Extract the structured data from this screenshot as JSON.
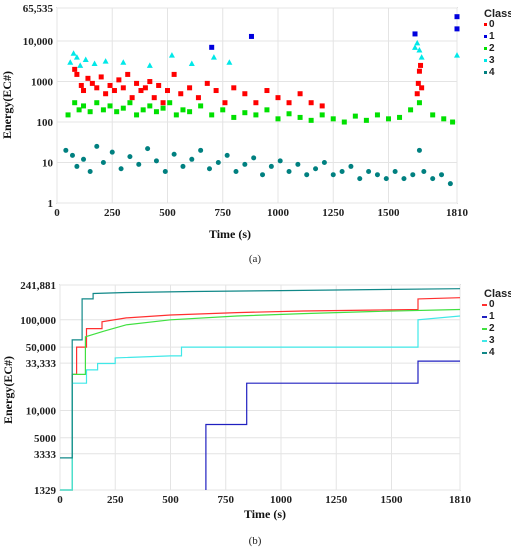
{
  "chart_data": [
    {
      "id": "a",
      "type": "scatter",
      "caption": "(a)",
      "xlabel": "Time  (s)",
      "ylabel": "Energy(EC#)",
      "xlim": [
        0,
        1810
      ],
      "ylim": [
        1,
        65535
      ],
      "yscale": "log",
      "xticks": [
        {
          "v": 0,
          "label": "0"
        },
        {
          "v": 250,
          "label": "250"
        },
        {
          "v": 500,
          "label": "500"
        },
        {
          "v": 750,
          "label": "750"
        },
        {
          "v": 1000,
          "label": "1000"
        },
        {
          "v": 1250,
          "label": "1250"
        },
        {
          "v": 1500,
          "label": "1500"
        },
        {
          "v": 1810,
          "label": "1810"
        }
      ],
      "yticks": [
        {
          "v": 1,
          "label": "1"
        },
        {
          "v": 10,
          "label": "10"
        },
        {
          "v": 100,
          "label": "100"
        },
        {
          "v": 1000,
          "label": "1000"
        },
        {
          "v": 10000,
          "label": "10,000"
        },
        {
          "v": 65535,
          "label": "65,535"
        }
      ],
      "grid": true,
      "legend": {
        "title": "Class",
        "placement": "right"
      },
      "series": [
        {
          "name": "0",
          "color": "#ff0000",
          "marker": "square",
          "points": [
            [
              80,
              2000
            ],
            [
              90,
              1500
            ],
            [
              110,
              800
            ],
            [
              120,
              600
            ],
            [
              140,
              1200
            ],
            [
              160,
              900
            ],
            [
              180,
              700
            ],
            [
              200,
              1300
            ],
            [
              220,
              500
            ],
            [
              240,
              800
            ],
            [
              260,
              600
            ],
            [
              280,
              1100
            ],
            [
              300,
              700
            ],
            [
              320,
              1500
            ],
            [
              340,
              400
            ],
            [
              360,
              900
            ],
            [
              380,
              600
            ],
            [
              400,
              700
            ],
            [
              420,
              1000
            ],
            [
              440,
              400
            ],
            [
              460,
              800
            ],
            [
              480,
              300
            ],
            [
              500,
              600
            ],
            [
              530,
              1500
            ],
            [
              560,
              500
            ],
            [
              600,
              700
            ],
            [
              640,
              400
            ],
            [
              680,
              900
            ],
            [
              720,
              600
            ],
            [
              760,
              300
            ],
            [
              800,
              700
            ],
            [
              850,
              500
            ],
            [
              900,
              300
            ],
            [
              950,
              600
            ],
            [
              1000,
              400
            ],
            [
              1050,
              300
            ],
            [
              1100,
              500
            ],
            [
              1150,
              300
            ],
            [
              1200,
              250
            ],
            [
              1630,
              500
            ],
            [
              1635,
              900
            ],
            [
              1640,
              1800
            ],
            [
              1645,
              2500
            ],
            [
              1650,
              700
            ]
          ]
        },
        {
          "name": "1",
          "color": "#0000dd",
          "marker": "square",
          "points": [
            [
              700,
              7000
            ],
            [
              880,
              13000
            ],
            [
              1620,
              15000
            ],
            [
              1810,
              40000
            ],
            [
              1810,
              20000
            ]
          ]
        },
        {
          "name": "2",
          "color": "#00e000",
          "marker": "square",
          "points": [
            [
              50,
              150
            ],
            [
              80,
              300
            ],
            [
              100,
              200
            ],
            [
              120,
              250
            ],
            [
              150,
              180
            ],
            [
              180,
              300
            ],
            [
              210,
              200
            ],
            [
              240,
              250
            ],
            [
              270,
              180
            ],
            [
              300,
              220
            ],
            [
              330,
              300
            ],
            [
              360,
              150
            ],
            [
              390,
              200
            ],
            [
              420,
              250
            ],
            [
              450,
              180
            ],
            [
              480,
              220
            ],
            [
              510,
              300
            ],
            [
              540,
              150
            ],
            [
              570,
              200
            ],
            [
              600,
              180
            ],
            [
              650,
              250
            ],
            [
              700,
              150
            ],
            [
              750,
              200
            ],
            [
              800,
              130
            ],
            [
              850,
              170
            ],
            [
              900,
              150
            ],
            [
              950,
              200
            ],
            [
              1000,
              120
            ],
            [
              1050,
              160
            ],
            [
              1100,
              130
            ],
            [
              1150,
              110
            ],
            [
              1200,
              150
            ],
            [
              1250,
              120
            ],
            [
              1300,
              100
            ],
            [
              1350,
              140
            ],
            [
              1400,
              110
            ],
            [
              1450,
              150
            ],
            [
              1500,
              120
            ],
            [
              1550,
              130
            ],
            [
              1600,
              200
            ],
            [
              1640,
              300
            ],
            [
              1700,
              150
            ],
            [
              1750,
              120
            ],
            [
              1790,
              100
            ]
          ]
        },
        {
          "name": "3",
          "color": "#00e8e8",
          "marker": "triangle",
          "points": [
            [
              60,
              3000
            ],
            [
              75,
              5000
            ],
            [
              90,
              4000
            ],
            [
              105,
              2500
            ],
            [
              130,
              3500
            ],
            [
              170,
              2800
            ],
            [
              220,
              3200
            ],
            [
              300,
              3000
            ],
            [
              420,
              2500
            ],
            [
              520,
              4500
            ],
            [
              610,
              2800
            ],
            [
              710,
              4000
            ],
            [
              780,
              3000
            ],
            [
              1620,
              7000
            ],
            [
              1630,
              9000
            ],
            [
              1640,
              6000
            ],
            [
              1650,
              4000
            ],
            [
              1810,
              4500
            ]
          ]
        },
        {
          "name": "4",
          "color": "#008080",
          "marker": "circle",
          "points": [
            [
              40,
              20
            ],
            [
              70,
              15
            ],
            [
              90,
              8
            ],
            [
              120,
              12
            ],
            [
              150,
              6
            ],
            [
              180,
              25
            ],
            [
              210,
              10
            ],
            [
              250,
              18
            ],
            [
              290,
              7
            ],
            [
              330,
              14
            ],
            [
              370,
              9
            ],
            [
              410,
              22
            ],
            [
              450,
              11
            ],
            [
              490,
              6
            ],
            [
              530,
              16
            ],
            [
              570,
              8
            ],
            [
              610,
              12
            ],
            [
              650,
              20
            ],
            [
              690,
              7
            ],
            [
              730,
              10
            ],
            [
              770,
              15
            ],
            [
              810,
              6
            ],
            [
              850,
              9
            ],
            [
              890,
              13
            ],
            [
              930,
              5
            ],
            [
              970,
              8
            ],
            [
              1010,
              11
            ],
            [
              1050,
              6
            ],
            [
              1090,
              9
            ],
            [
              1130,
              5
            ],
            [
              1170,
              7
            ],
            [
              1210,
              10
            ],
            [
              1250,
              5
            ],
            [
              1290,
              6
            ],
            [
              1330,
              8
            ],
            [
              1370,
              4
            ],
            [
              1410,
              6
            ],
            [
              1450,
              5
            ],
            [
              1490,
              4
            ],
            [
              1530,
              6
            ],
            [
              1570,
              4
            ],
            [
              1610,
              5
            ],
            [
              1640,
              20
            ],
            [
              1660,
              6
            ],
            [
              1700,
              4
            ],
            [
              1740,
              5
            ],
            [
              1780,
              3
            ]
          ]
        }
      ]
    },
    {
      "id": "b",
      "type": "line",
      "caption": "(b)",
      "xlabel": "Time     (s)",
      "ylabel": "Energy(EC#)",
      "xlim": [
        0,
        1810
      ],
      "ylim": [
        1329,
        241881
      ],
      "yscale": "log",
      "xticks": [
        {
          "v": 0,
          "label": "0"
        },
        {
          "v": 250,
          "label": "250"
        },
        {
          "v": 500,
          "label": "500"
        },
        {
          "v": 750,
          "label": "750"
        },
        {
          "v": 1000,
          "label": "1000"
        },
        {
          "v": 1250,
          "label": "1250"
        },
        {
          "v": 1500,
          "label": "1500"
        },
        {
          "v": 1810,
          "label": "1810"
        }
      ],
      "yticks": [
        {
          "v": 1329,
          "label": "1329"
        },
        {
          "v": 3333,
          "label": "3333"
        },
        {
          "v": 5000,
          "label": "5000"
        },
        {
          "v": 10000,
          "label": "10,000"
        },
        {
          "v": 33333,
          "label": "33,333"
        },
        {
          "v": 50000,
          "label": "50,000"
        },
        {
          "v": 100000,
          "label": "100,000"
        },
        {
          "v": 241881,
          "label": "241,881"
        }
      ],
      "grid": true,
      "legend": {
        "title": "Class",
        "placement": "right"
      },
      "series": [
        {
          "name": "0",
          "color": "#ff3030",
          "points": [
            [
              0,
              1329
            ],
            [
              55,
              1329
            ],
            [
              55,
              25000
            ],
            [
              75,
              25000
            ],
            [
              75,
              50000
            ],
            [
              120,
              50000
            ],
            [
              120,
              80000
            ],
            [
              190,
              80000
            ],
            [
              190,
              95000
            ],
            [
              300,
              105000
            ],
            [
              500,
              113000
            ],
            [
              800,
              120000
            ],
            [
              1100,
              125000
            ],
            [
              1400,
              128000
            ],
            [
              1620,
              130000
            ],
            [
              1620,
              170000
            ],
            [
              1810,
              175000
            ]
          ]
        },
        {
          "name": "1",
          "color": "#2020c0",
          "points": [
            [
              660,
              1329
            ],
            [
              660,
              7000
            ],
            [
              845,
              7000
            ],
            [
              845,
              20000
            ],
            [
              1620,
              20000
            ],
            [
              1620,
              35000
            ],
            [
              1810,
              35000
            ]
          ]
        },
        {
          "name": "2",
          "color": "#40e040",
          "points": [
            [
              0,
              1329
            ],
            [
              55,
              1329
            ],
            [
              55,
              25000
            ],
            [
              115,
              25000
            ],
            [
              115,
              65000
            ],
            [
              200,
              75000
            ],
            [
              300,
              88000
            ],
            [
              500,
              100000
            ],
            [
              800,
              110000
            ],
            [
              1100,
              117000
            ],
            [
              1400,
              123000
            ],
            [
              1810,
              130000
            ]
          ]
        },
        {
          "name": "3",
          "color": "#40e8e8",
          "points": [
            [
              0,
              1329
            ],
            [
              55,
              1329
            ],
            [
              55,
              20000
            ],
            [
              120,
              20000
            ],
            [
              120,
              28000
            ],
            [
              170,
              28000
            ],
            [
              170,
              33000
            ],
            [
              250,
              33000
            ],
            [
              250,
              38000
            ],
            [
              500,
              40000
            ],
            [
              550,
              40000
            ],
            [
              550,
              50000
            ],
            [
              1620,
              50000
            ],
            [
              1620,
              100000
            ],
            [
              1810,
              110000
            ]
          ]
        },
        {
          "name": "4",
          "color": "#108888",
          "points": [
            [
              0,
              3000
            ],
            [
              55,
              3000
            ],
            [
              55,
              60000
            ],
            [
              100,
              60000
            ],
            [
              100,
              170000
            ],
            [
              150,
              170000
            ],
            [
              150,
              195000
            ],
            [
              300,
              200000
            ],
            [
              600,
              205000
            ],
            [
              1000,
              210000
            ],
            [
              1400,
              215000
            ],
            [
              1810,
              220000
            ]
          ]
        }
      ]
    }
  ]
}
